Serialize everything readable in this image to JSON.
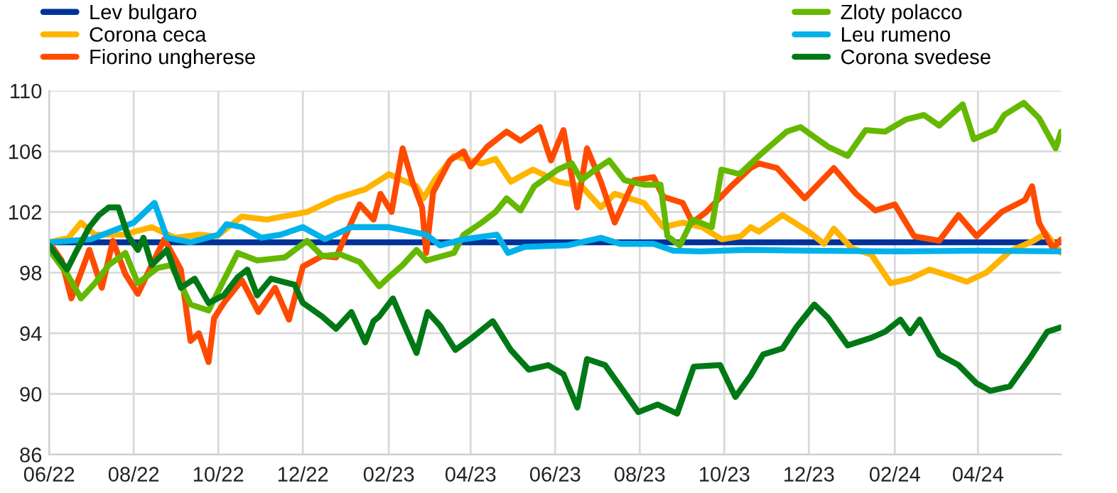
{
  "chart_data": {
    "type": "line",
    "legend": "top",
    "grid": true,
    "line_style": "solid",
    "marker": "none",
    "xlim": [
      "2022-06-01",
      "2024-05-31"
    ],
    "xticks": [
      {
        "value": "2022-06-01",
        "label": "06/22"
      },
      {
        "value": "2022-08-01",
        "label": "08/22"
      },
      {
        "value": "2022-10-01",
        "label": "10/22"
      },
      {
        "value": "2022-12-01",
        "label": "12/22"
      },
      {
        "value": "2023-02-01",
        "label": "02/23"
      },
      {
        "value": "2023-04-01",
        "label": "04/23"
      },
      {
        "value": "2023-06-01",
        "label": "06/23"
      },
      {
        "value": "2023-08-01",
        "label": "08/23"
      },
      {
        "value": "2023-10-01",
        "label": "10/23"
      },
      {
        "value": "2023-12-01",
        "label": "12/23"
      },
      {
        "value": "2024-02-01",
        "label": "02/24"
      },
      {
        "value": "2024-04-01",
        "label": "04/24"
      }
    ],
    "ylim": [
      86,
      110
    ],
    "yticks": [
      86,
      90,
      94,
      98,
      102,
      106,
      110
    ],
    "series": [
      {
        "name": "Lev bulgaro",
        "color": "#003299",
        "x": [
          "2022-06-01",
          "2024-05-31"
        ],
        "values": [
          100,
          100
        ]
      },
      {
        "name": "Corona ceca",
        "color": "#ffb400",
        "x": [
          "2022-06-01",
          "2022-06-15",
          "2022-06-24",
          "2022-07-04",
          "2022-07-24",
          "2022-08-14",
          "2022-08-31",
          "2022-09-17",
          "2022-09-30",
          "2022-10-18",
          "2022-11-05",
          "2022-12-04",
          "2022-12-25",
          "2023-01-15",
          "2023-01-29",
          "2023-02-01",
          "2023-02-21",
          "2023-02-26",
          "2023-03-06",
          "2023-03-20",
          "2023-04-09",
          "2023-04-19",
          "2023-04-30",
          "2023-05-16",
          "2023-06-03",
          "2023-06-20",
          "2023-07-04",
          "2023-07-14",
          "2023-08-04",
          "2023-08-18",
          "2023-09-01",
          "2023-09-15",
          "2023-09-29",
          "2023-10-13",
          "2023-10-20",
          "2023-10-26",
          "2023-11-12",
          "2023-12-01",
          "2023-12-12",
          "2023-12-19",
          "2024-01-01",
          "2024-01-15",
          "2024-01-29",
          "2024-02-12",
          "2024-02-26",
          "2024-03-11",
          "2024-03-24",
          "2024-04-07",
          "2024-04-24",
          "2024-05-11",
          "2024-05-20",
          "2024-05-31"
        ],
        "values": [
          100,
          100.3,
          101.3,
          100.5,
          100.5,
          101,
          100.3,
          100.5,
          100.4,
          101.7,
          101.5,
          102,
          102.9,
          103.5,
          104.3,
          104.5,
          103.7,
          102.9,
          104.1,
          105.7,
          105.2,
          105.5,
          104,
          104.8,
          104,
          103.7,
          102.3,
          103.2,
          102.6,
          101,
          101.3,
          101,
          100.2,
          100.4,
          101,
          100.7,
          101.8,
          100.7,
          99.9,
          100.9,
          99.6,
          99.2,
          97.3,
          97.6,
          98.2,
          97.8,
          97.4,
          98,
          99.4,
          100.1,
          100.6,
          99.3
        ]
      },
      {
        "name": "Fiorino ungherese",
        "color": "#ff4b00",
        "x": [
          "2022-06-01",
          "2022-06-10",
          "2022-06-17",
          "2022-06-24",
          "2022-06-30",
          "2022-07-09",
          "2022-07-17",
          "2022-07-26",
          "2022-08-04",
          "2022-08-14",
          "2022-08-23",
          "2022-09-04",
          "2022-09-11",
          "2022-09-17",
          "2022-09-24",
          "2022-09-28",
          "2022-10-05",
          "2022-10-18",
          "2022-10-30",
          "2022-11-11",
          "2022-11-21",
          "2022-12-01",
          "2022-12-15",
          "2022-12-25",
          "2023-01-05",
          "2023-01-11",
          "2023-01-21",
          "2023-01-26",
          "2023-02-03",
          "2023-02-11",
          "2023-02-18",
          "2023-02-25",
          "2023-02-28",
          "2023-03-05",
          "2023-03-17",
          "2023-03-27",
          "2023-04-01",
          "2023-04-13",
          "2023-04-27",
          "2023-05-07",
          "2023-05-21",
          "2023-05-29",
          "2023-06-07",
          "2023-06-17",
          "2023-06-24",
          "2023-07-04",
          "2023-07-14",
          "2023-07-28",
          "2023-08-11",
          "2023-08-18",
          "2023-09-01",
          "2023-09-08",
          "2023-09-18",
          "2023-10-06",
          "2023-10-20",
          "2023-10-26",
          "2023-11-08",
          "2023-11-28",
          "2023-12-19",
          "2024-01-04",
          "2024-01-18",
          "2024-02-01",
          "2024-02-15",
          "2024-03-04",
          "2024-03-18",
          "2024-03-31",
          "2024-04-18",
          "2024-05-05",
          "2024-05-10",
          "2024-05-15",
          "2024-05-25",
          "2024-05-31"
        ],
        "values": [
          100,
          98.8,
          96.3,
          98,
          99.5,
          97,
          100.1,
          97.9,
          96.6,
          98.5,
          100.2,
          98.2,
          93.5,
          94,
          92.1,
          95,
          96,
          97.5,
          95.4,
          97,
          94.9,
          98.4,
          99.1,
          99,
          101.3,
          102.5,
          101.5,
          103.2,
          102,
          106.2,
          104,
          102.3,
          99.3,
          103.3,
          105.4,
          106,
          105,
          106.3,
          107.3,
          106.7,
          107.6,
          105.4,
          107.4,
          102.3,
          106.2,
          104,
          101.3,
          104.1,
          104.3,
          103,
          102.6,
          101.3,
          102,
          103.7,
          104.9,
          105.2,
          104.9,
          102.9,
          104.9,
          103.2,
          102.1,
          102.5,
          100.4,
          100.1,
          101.8,
          100.4,
          102,
          102.8,
          103.7,
          101.3,
          99.6,
          100.2
        ]
      },
      {
        "name": "Zloty polacco",
        "color": "#65b800",
        "x": [
          "2022-06-01",
          "2022-06-14",
          "2022-06-24",
          "2022-07-04",
          "2022-07-14",
          "2022-07-26",
          "2022-08-04",
          "2022-08-18",
          "2022-08-28",
          "2022-09-11",
          "2022-09-24",
          "2022-10-05",
          "2022-10-15",
          "2022-10-29",
          "2022-11-18",
          "2022-12-04",
          "2022-12-15",
          "2022-12-28",
          "2023-01-11",
          "2023-01-25",
          "2023-02-01",
          "2023-02-11",
          "2023-02-21",
          "2023-02-28",
          "2023-03-20",
          "2023-03-27",
          "2023-04-09",
          "2023-04-19",
          "2023-04-27",
          "2023-05-07",
          "2023-05-17",
          "2023-06-03",
          "2023-06-13",
          "2023-06-20",
          "2023-06-30",
          "2023-07-10",
          "2023-07-21",
          "2023-08-04",
          "2023-08-16",
          "2023-08-21",
          "2023-08-30",
          "2023-09-08",
          "2023-09-22",
          "2023-09-29",
          "2023-10-12",
          "2023-10-26",
          "2023-11-15",
          "2023-11-25",
          "2023-12-01",
          "2023-12-15",
          "2023-12-29",
          "2024-01-11",
          "2024-01-25",
          "2024-02-09",
          "2024-02-22",
          "2024-03-04",
          "2024-03-21",
          "2024-03-29",
          "2024-04-13",
          "2024-04-20",
          "2024-05-04",
          "2024-05-15",
          "2024-05-27",
          "2024-05-31"
        ],
        "values": [
          99.5,
          97.9,
          96.3,
          97.3,
          98.5,
          99.3,
          97.3,
          98.3,
          98.5,
          95.9,
          95.5,
          97.5,
          99.3,
          98.8,
          99,
          100.1,
          99.1,
          99.2,
          98.7,
          97.1,
          97.7,
          98.5,
          99.5,
          98.8,
          99.3,
          100.5,
          101.3,
          102,
          102.9,
          102.1,
          103.7,
          104.8,
          105.2,
          104.1,
          104.8,
          105.4,
          104.1,
          103.8,
          103.8,
          100.4,
          99.8,
          101.5,
          101,
          104.8,
          104.5,
          105.7,
          107.3,
          107.6,
          107.2,
          106.3,
          105.7,
          107.4,
          107.3,
          108.1,
          108.4,
          107.7,
          109.1,
          106.8,
          107.4,
          108.4,
          109.2,
          108.2,
          106.2,
          107.3
        ]
      },
      {
        "name": "Leu rumeno",
        "color": "#00b1ea",
        "x": [
          "2022-06-01",
          "2022-07-01",
          "2022-08-01",
          "2022-08-16",
          "2022-08-25",
          "2022-09-11",
          "2022-10-01",
          "2022-10-07",
          "2022-10-18",
          "2022-11-01",
          "2022-11-15",
          "2022-12-01",
          "2022-12-17",
          "2023-01-05",
          "2023-02-01",
          "2023-02-28",
          "2023-03-10",
          "2023-03-27",
          "2023-04-20",
          "2023-04-28",
          "2023-05-10",
          "2023-06-10",
          "2023-07-04",
          "2023-07-18",
          "2023-08-11",
          "2023-08-25",
          "2023-09-14",
          "2023-10-18",
          "2023-12-01",
          "2024-02-01",
          "2024-04-01",
          "2024-05-31"
        ],
        "values": [
          100,
          100.2,
          101.3,
          102.6,
          100.3,
          100,
          100.5,
          101.2,
          101,
          100.3,
          100.5,
          101,
          100.2,
          101,
          101,
          100.5,
          99.8,
          100.2,
          100.5,
          99.3,
          99.7,
          99.8,
          100.3,
          99.9,
          99.9,
          99.45,
          99.4,
          99.5,
          99.45,
          99.4,
          99.45,
          99.4
        ]
      },
      {
        "name": "Corona svedese",
        "color": "#007816",
        "x": [
          "2022-06-01",
          "2022-06-14",
          "2022-06-20",
          "2022-06-30",
          "2022-07-07",
          "2022-07-14",
          "2022-07-21",
          "2022-07-28",
          "2022-08-04",
          "2022-08-08",
          "2022-08-14",
          "2022-08-25",
          "2022-09-04",
          "2022-09-14",
          "2022-09-24",
          "2022-10-05",
          "2022-10-15",
          "2022-10-22",
          "2022-10-29",
          "2022-11-08",
          "2022-11-25",
          "2022-12-01",
          "2022-12-15",
          "2022-12-25",
          "2023-01-05",
          "2023-01-15",
          "2023-01-21",
          "2023-01-25",
          "2023-02-04",
          "2023-02-11",
          "2023-02-21",
          "2023-03-01",
          "2023-03-10",
          "2023-03-21",
          "2023-04-02",
          "2023-04-17",
          "2023-04-30",
          "2023-05-13",
          "2023-05-27",
          "2023-06-07",
          "2023-06-17",
          "2023-06-24",
          "2023-07-07",
          "2023-07-21",
          "2023-07-31",
          "2023-08-14",
          "2023-08-28",
          "2023-09-09",
          "2023-09-28",
          "2023-10-09",
          "2023-10-20",
          "2023-10-29",
          "2023-11-12",
          "2023-11-22",
          "2023-12-05",
          "2023-12-15",
          "2023-12-29",
          "2024-01-15",
          "2024-01-25",
          "2024-02-05",
          "2024-02-12",
          "2024-02-19",
          "2024-03-04",
          "2024-03-18",
          "2024-03-31",
          "2024-04-10",
          "2024-04-24",
          "2024-05-08",
          "2024-05-21",
          "2024-05-31"
        ],
        "values": [
          99.8,
          98.2,
          99.3,
          101,
          101.8,
          102.3,
          102.3,
          100.4,
          99.5,
          100.3,
          98.5,
          99.5,
          97,
          97.6,
          96,
          96.5,
          97.7,
          98.2,
          96.5,
          97.6,
          97.2,
          96,
          95.1,
          94.3,
          95.4,
          93.4,
          94.8,
          95.1,
          96.3,
          94.8,
          92.7,
          95.4,
          94.5,
          92.9,
          93.7,
          94.8,
          92.9,
          91.6,
          91.9,
          91.3,
          89.1,
          92.3,
          91.9,
          90.1,
          88.8,
          89.3,
          88.7,
          91.8,
          91.9,
          89.8,
          91.2,
          92.6,
          93,
          94.4,
          95.9,
          95,
          93.2,
          93.7,
          94.1,
          94.9,
          94,
          94.9,
          92.6,
          91.9,
          90.7,
          90.2,
          90.5,
          92.3,
          94.1,
          94.4
        ]
      }
    ]
  }
}
